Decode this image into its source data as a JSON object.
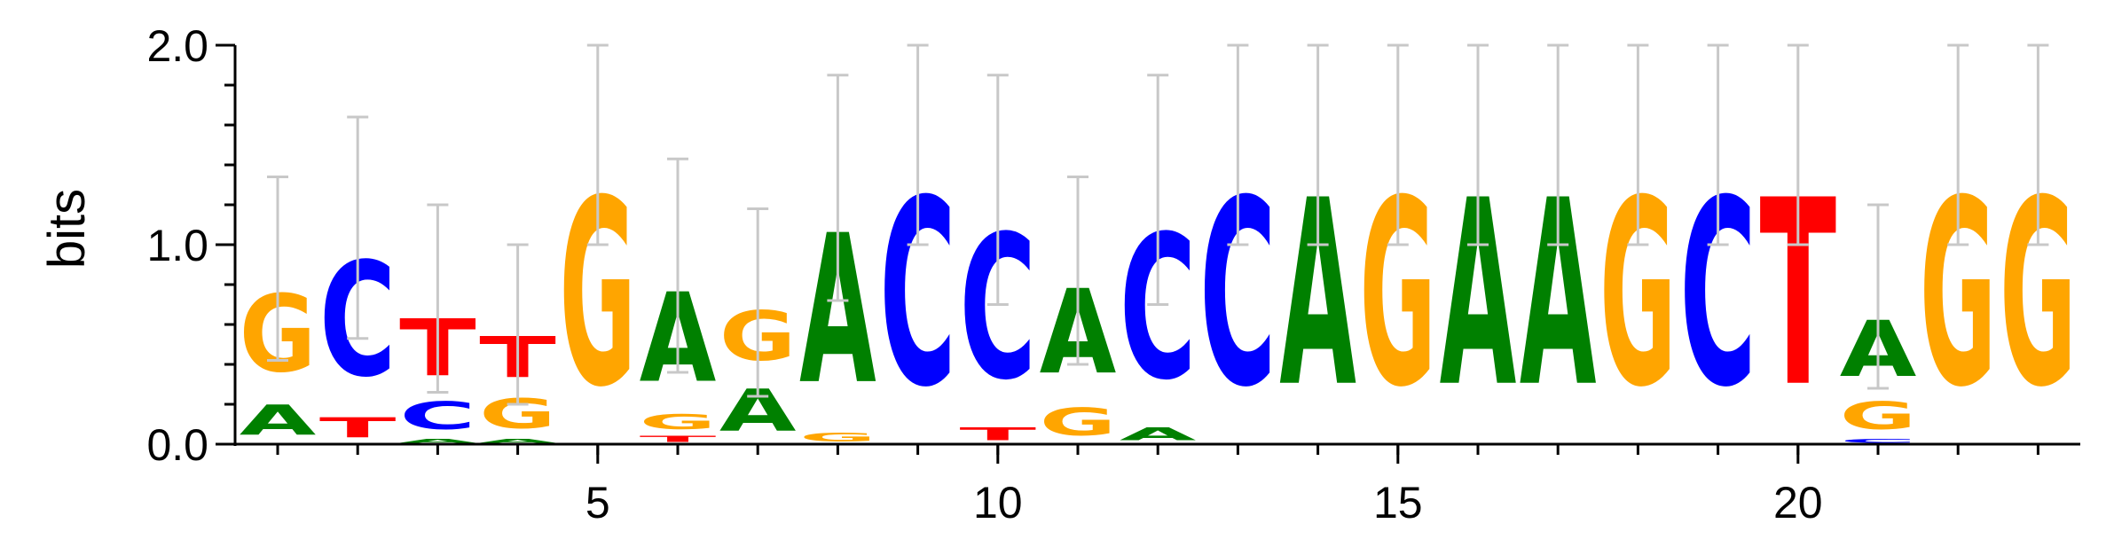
{
  "chart_data": {
    "type": "sequence-logo",
    "ylabel": "bits",
    "ylim": [
      0,
      2
    ],
    "y_ticks": [
      {
        "value": 0,
        "label": "0.0"
      },
      {
        "value": 1,
        "label": "1.0"
      },
      {
        "value": 2,
        "label": "2.0"
      }
    ],
    "x_ticks": [
      {
        "value": 5,
        "label": "5"
      },
      {
        "value": 10,
        "label": "10"
      },
      {
        "value": 15,
        "label": "15"
      },
      {
        "value": 20,
        "label": "20"
      }
    ],
    "colors": {
      "A": "#008000",
      "C": "#0000ff",
      "G": "#ffa500",
      "T": "#ff0000"
    },
    "positions": [
      {
        "pos": 1,
        "error": [
          0.42,
          1.34
        ],
        "stack": [
          {
            "base": "A",
            "height": 0.24
          },
          {
            "base": "G",
            "height": 0.62
          }
        ]
      },
      {
        "pos": 2,
        "error": [
          0.53,
          1.64
        ],
        "stack": [
          {
            "base": "T",
            "height": 0.16
          },
          {
            "base": "C",
            "height": 0.92
          }
        ]
      },
      {
        "pos": 3,
        "error": [
          0.26,
          1.2
        ],
        "stack": [
          {
            "base": "A",
            "height": 0.03
          },
          {
            "base": "C",
            "height": 0.22
          },
          {
            "base": "T",
            "height": 0.46
          }
        ]
      },
      {
        "pos": 4,
        "error": [
          0.2,
          1.0
        ],
        "stack": [
          {
            "base": "A",
            "height": 0.03
          },
          {
            "base": "G",
            "height": 0.24
          },
          {
            "base": "T",
            "height": 0.33
          }
        ]
      },
      {
        "pos": 5,
        "error": [
          1.0,
          2.0
        ],
        "stack": [
          {
            "base": "G",
            "height": 1.5
          }
        ]
      },
      {
        "pos": 6,
        "error": [
          0.36,
          1.43
        ],
        "stack": [
          {
            "base": "T",
            "height": 0.05
          },
          {
            "base": "G",
            "height": 0.12
          },
          {
            "base": "A",
            "height": 0.72
          }
        ]
      },
      {
        "pos": 7,
        "error": [
          0.24,
          1.18
        ],
        "stack": [
          {
            "base": "A",
            "height": 0.34
          },
          {
            "base": "G",
            "height": 0.4
          }
        ]
      },
      {
        "pos": 8,
        "error": [
          0.72,
          1.85
        ],
        "stack": [
          {
            "base": "G",
            "height": 0.07
          },
          {
            "base": "A",
            "height": 1.2
          }
        ]
      },
      {
        "pos": 9,
        "error": [
          1.0,
          2.0
        ],
        "stack": [
          {
            "base": "C",
            "height": 1.5
          }
        ]
      },
      {
        "pos": 10,
        "error": [
          0.7,
          1.85
        ],
        "stack": [
          {
            "base": "T",
            "height": 0.1
          },
          {
            "base": "C",
            "height": 1.16
          }
        ]
      },
      {
        "pos": 11,
        "error": [
          0.4,
          1.34
        ],
        "stack": [
          {
            "base": "G",
            "height": 0.22
          },
          {
            "base": "A",
            "height": 0.68
          }
        ]
      },
      {
        "pos": 12,
        "error": [
          0.7,
          1.85
        ],
        "stack": [
          {
            "base": "A",
            "height": 0.1
          },
          {
            "base": "C",
            "height": 1.16
          }
        ]
      },
      {
        "pos": 13,
        "error": [
          1.0,
          2.0
        ],
        "stack": [
          {
            "base": "C",
            "height": 1.5
          }
        ]
      },
      {
        "pos": 14,
        "error": [
          1.0,
          2.0
        ],
        "stack": [
          {
            "base": "A",
            "height": 1.5
          }
        ]
      },
      {
        "pos": 15,
        "error": [
          1.0,
          2.0
        ],
        "stack": [
          {
            "base": "G",
            "height": 1.5
          }
        ]
      },
      {
        "pos": 16,
        "error": [
          1.0,
          2.0
        ],
        "stack": [
          {
            "base": "A",
            "height": 1.5
          }
        ]
      },
      {
        "pos": 17,
        "error": [
          1.0,
          2.0
        ],
        "stack": [
          {
            "base": "A",
            "height": 1.5
          }
        ]
      },
      {
        "pos": 18,
        "error": [
          1.0,
          2.0
        ],
        "stack": [
          {
            "base": "G",
            "height": 1.5
          }
        ]
      },
      {
        "pos": 19,
        "error": [
          1.0,
          2.0
        ],
        "stack": [
          {
            "base": "C",
            "height": 1.5
          }
        ]
      },
      {
        "pos": 20,
        "error": [
          1.0,
          2.0
        ],
        "stack": [
          {
            "base": "T",
            "height": 1.5
          }
        ]
      },
      {
        "pos": 21,
        "error": [
          0.28,
          1.2
        ],
        "stack": [
          {
            "base": "C",
            "height": 0.03
          },
          {
            "base": "G",
            "height": 0.22
          },
          {
            "base": "A",
            "height": 0.45
          }
        ]
      },
      {
        "pos": 22,
        "error": [
          1.0,
          2.0
        ],
        "stack": [
          {
            "base": "G",
            "height": 1.5
          }
        ]
      },
      {
        "pos": 23,
        "error": [
          1.0,
          2.0
        ],
        "stack": [
          {
            "base": "G",
            "height": 1.5
          }
        ]
      }
    ]
  }
}
